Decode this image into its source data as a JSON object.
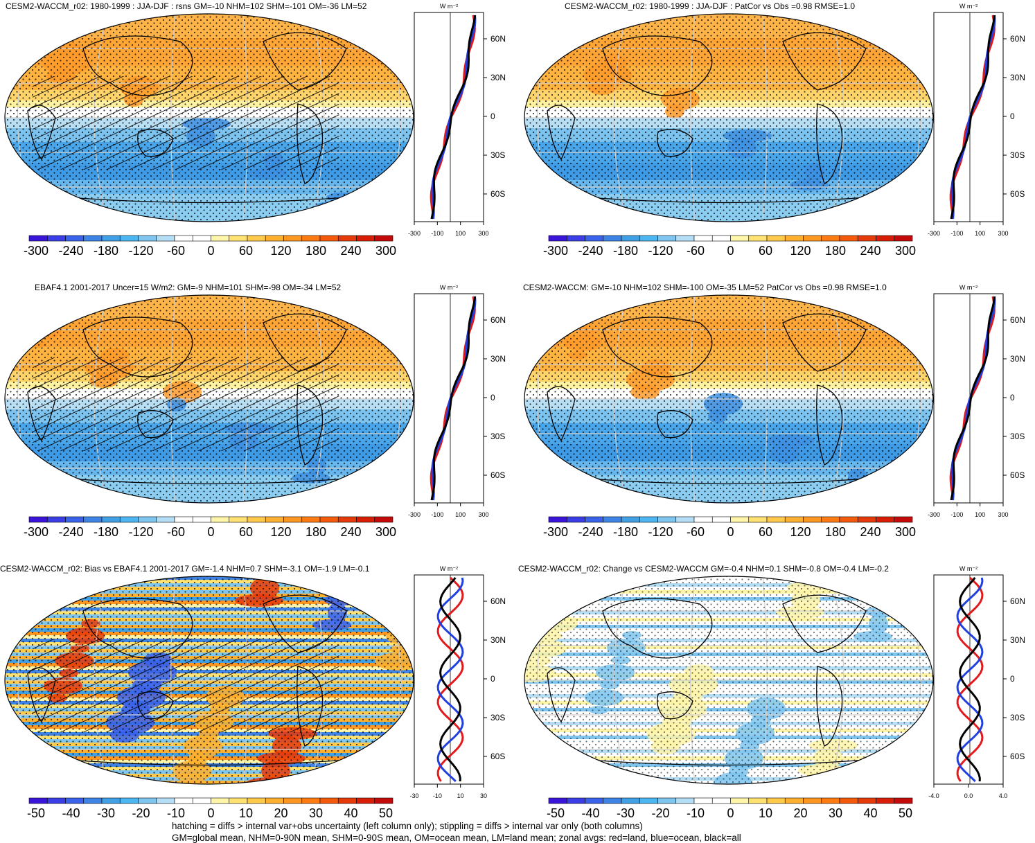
{
  "panels": [
    {
      "title": "CESM2-WACCM_r02: 1980-1999 : JJA-DJF : rsns GM=-10 NHM=102 SHM=-101 OM=-36 LM=52",
      "kind": "seasonal",
      "hatching": true,
      "colorbar": {
        "ticks": [
          "-300",
          "-240",
          "-180",
          "-120",
          "-60",
          "0",
          "60",
          "120",
          "180",
          "240",
          "300"
        ]
      },
      "profile": {
        "units": "W m⁻²",
        "xticks": [
          "-300",
          "-100",
          "100",
          "300"
        ],
        "yticks": [
          "60N",
          "30N",
          "0",
          "30S",
          "60S"
        ]
      }
    },
    {
      "title": "CESM2-WACCM_r02: 1980-1999 : JJA-DJF : PatCor vs Obs =0.98 RMSE=1.0",
      "kind": "seasonal",
      "hatching": false,
      "colorbar": {
        "ticks": [
          "-300",
          "-240",
          "-180",
          "-120",
          "-60",
          "0",
          "60",
          "120",
          "180",
          "240",
          "300"
        ]
      },
      "profile": {
        "units": "W m⁻²",
        "xticks": [
          "-300",
          "-100",
          "100",
          "300"
        ],
        "yticks": [
          "60N",
          "30N",
          "0",
          "30S",
          "60S"
        ]
      }
    },
    {
      "title": "EBAF4.1 2001-2017 Uncer=15 W/m2: GM=-9 NHM=101 SHM=-98 OM=-34 LM=52",
      "kind": "seasonal",
      "hatching": true,
      "colorbar": {
        "ticks": [
          "-300",
          "-240",
          "-180",
          "-120",
          "-60",
          "0",
          "60",
          "120",
          "180",
          "240",
          "300"
        ]
      },
      "profile": {
        "units": "W m⁻²",
        "xticks": [
          "-300",
          "-100",
          "100",
          "300"
        ],
        "yticks": [
          "60N",
          "30N",
          "0",
          "30S",
          "60S"
        ]
      }
    },
    {
      "title": "CESM2-WACCM: GM=-10 NHM=102 SHM=-100 OM=-35 LM=52 PatCor vs Obs =0.98 RMSE=1.0",
      "kind": "seasonal",
      "hatching": false,
      "colorbar": {
        "ticks": [
          "-300",
          "-240",
          "-180",
          "-120",
          "-60",
          "0",
          "60",
          "120",
          "180",
          "240",
          "300"
        ]
      },
      "profile": {
        "units": "W m⁻²",
        "xticks": [
          "-300",
          "-100",
          "100",
          "300"
        ],
        "yticks": [
          "60N",
          "30N",
          "0",
          "30S",
          "60S"
        ]
      }
    },
    {
      "title": "CESM2-WACCM_r02: Bias vs EBAF4.1 2001-2017 GM=-1.4 NHM=0.7 SHM=-3.1 OM=-1.9 LM=-0.1",
      "kind": "bias",
      "hatching": true,
      "colorbar": {
        "ticks": [
          "-50",
          "-40",
          "-30",
          "-20",
          "-10",
          "0",
          "10",
          "20",
          "30",
          "40",
          "50"
        ]
      },
      "profile": {
        "units": "W m⁻²",
        "xticks": [
          "-30",
          "-10",
          "10",
          "30"
        ],
        "yticks": [
          "60N",
          "30N",
          "0",
          "30S",
          "60S"
        ]
      }
    },
    {
      "title": "CESM2-WACCM_r02: Change vs CESM2-WACCM GM=-0.4 NHM=0.1 SHM=-0.8 OM=-0.4 LM=-0.2",
      "kind": "change",
      "hatching": false,
      "colorbar": {
        "ticks": [
          "-50",
          "-40",
          "-30",
          "-20",
          "-10",
          "0",
          "10",
          "20",
          "30",
          "40",
          "50"
        ]
      },
      "profile": {
        "units": "W m⁻²",
        "xticks": [
          "-4.0",
          "0.0",
          "4.0"
        ],
        "yticks": [
          "60N",
          "30N",
          "0",
          "30S",
          "60S"
        ]
      }
    }
  ],
  "colors": {
    "land": "#e31a1c",
    "ocean": "#1f3fe0",
    "all": "#000000",
    "scale": [
      "#3a14d9",
      "#3b3ee6",
      "#3a62ea",
      "#3e83e6",
      "#3fa0e6",
      "#4cb6f0",
      "#7ec6f0",
      "#b4def5",
      "#ffffff",
      "#ffffff",
      "#fff5a8",
      "#ffe270",
      "#ffc94a",
      "#ffb02e",
      "#ff9620",
      "#ff7a10",
      "#f55a0a",
      "#e63a08",
      "#d81e06",
      "#c40a0a"
    ]
  },
  "footer": {
    "line1": "hatching = diffs > internal var+obs uncertainty (left column only); stippling = diffs > internal var only (both columns)",
    "line2": "GM=global mean, NHM=0-90N mean, SHM=0-90S mean, OM=ocean mean, LM=land mean; zonal avgs: red=land, blue=ocean, black=all"
  }
}
